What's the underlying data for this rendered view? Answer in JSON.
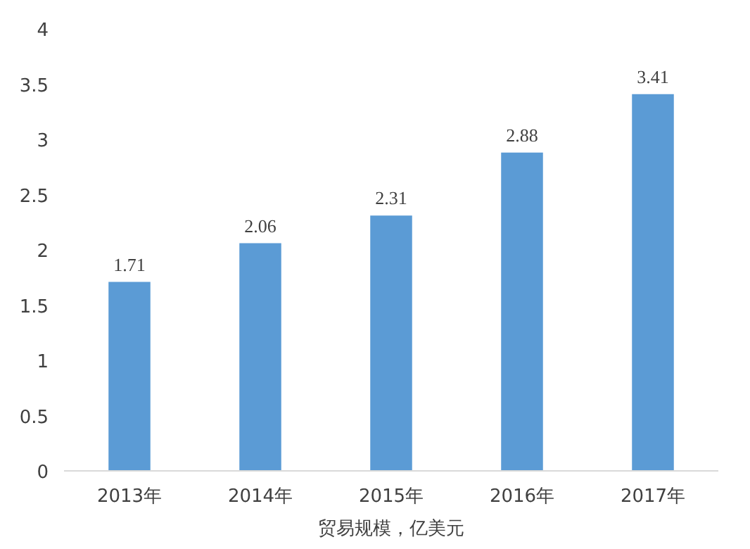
{
  "chart_data": {
    "type": "bar",
    "xlabel": "贸易规模，亿美元",
    "categories": [
      "2013年",
      "2014年",
      "2015年",
      "2016年",
      "2017年"
    ],
    "values": [
      1.71,
      2.06,
      2.31,
      2.88,
      3.41
    ],
    "color": "#5b9bd5",
    "ylim": [
      0,
      4
    ],
    "yticks": [
      0,
      0.5,
      1,
      1.5,
      2,
      2.5,
      3,
      3.5,
      4
    ],
    "grid": false,
    "data_labels": true
  }
}
